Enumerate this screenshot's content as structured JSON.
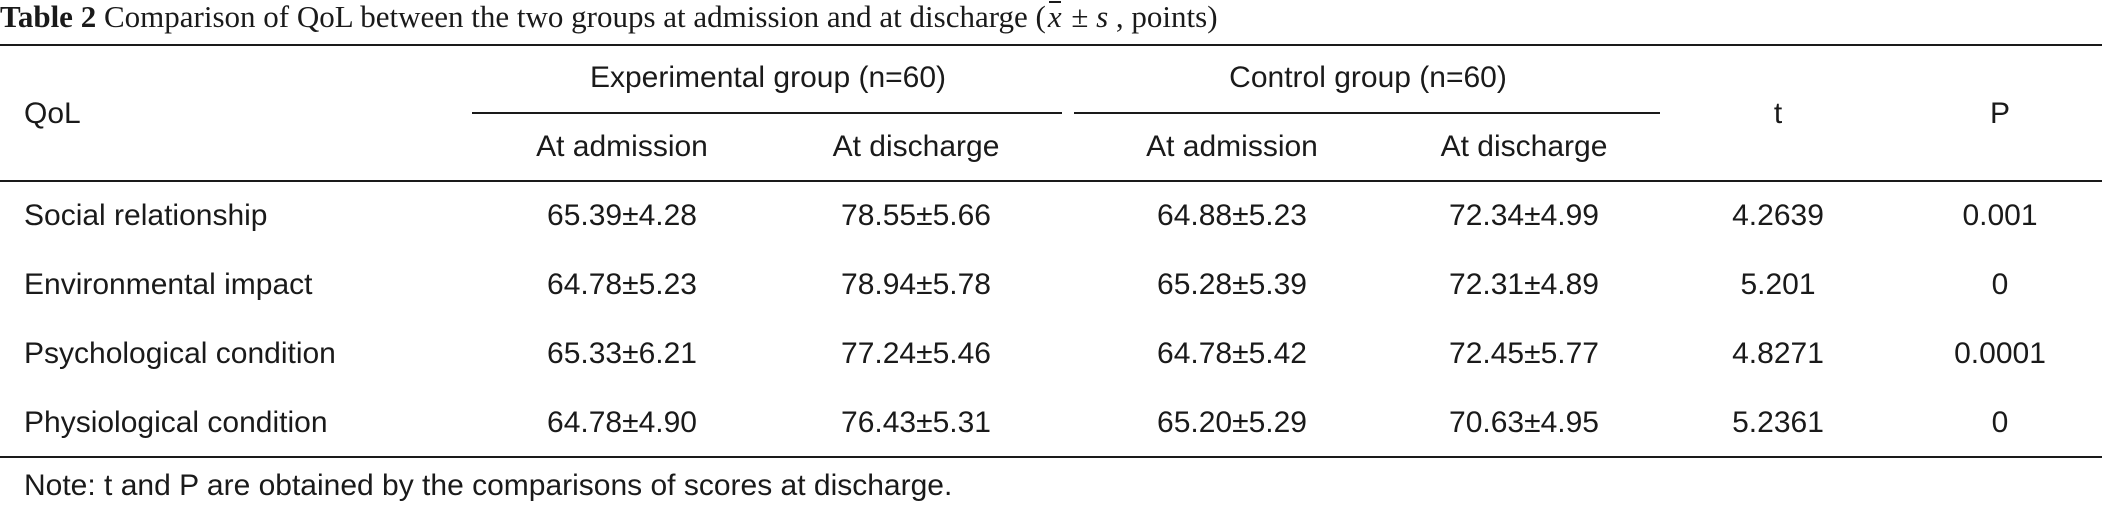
{
  "caption": {
    "label": "Table 2",
    "text": "Comparison of QoL between the two groups at admission and at discharge (",
    "xbar": "x",
    "pm": " ± ",
    "s": "s",
    "tail": " , points)"
  },
  "header": {
    "qol": "QoL",
    "experimental_group": "Experimental group (n=60)",
    "control_group": "Control group (n=60)",
    "t": "t",
    "p": "P",
    "exp_admission": "At admission",
    "exp_discharge": "At discharge",
    "ctrl_admission": "At admission",
    "ctrl_discharge": "At discharge"
  },
  "rows": [
    {
      "qol": "Social relationship",
      "exp_admission": "65.39±4.28",
      "exp_discharge": "78.55±5.66",
      "ctrl_admission": "64.88±5.23",
      "ctrl_discharge": "72.34±4.99",
      "t": "4.2639",
      "p": "0.001"
    },
    {
      "qol": "Environmental impact",
      "exp_admission": "64.78±5.23",
      "exp_discharge": "78.94±5.78",
      "ctrl_admission": "65.28±5.39",
      "ctrl_discharge": "72.31±4.89",
      "t": "5.201",
      "p": "0"
    },
    {
      "qol": "Psychological condition",
      "exp_admission": "65.33±6.21",
      "exp_discharge": "77.24±5.46",
      "ctrl_admission": "64.78±5.42",
      "ctrl_discharge": "72.45±5.77",
      "t": "4.8271",
      "p": "0.0001"
    },
    {
      "qol": "Physiological condition",
      "exp_admission": "64.78±4.90",
      "exp_discharge": "76.43±5.31",
      "ctrl_admission": "65.20±5.29",
      "ctrl_discharge": "70.63±4.95",
      "t": "5.2361",
      "p": "0"
    }
  ],
  "note": "Note: t and P are obtained by the comparisons of scores at discharge."
}
